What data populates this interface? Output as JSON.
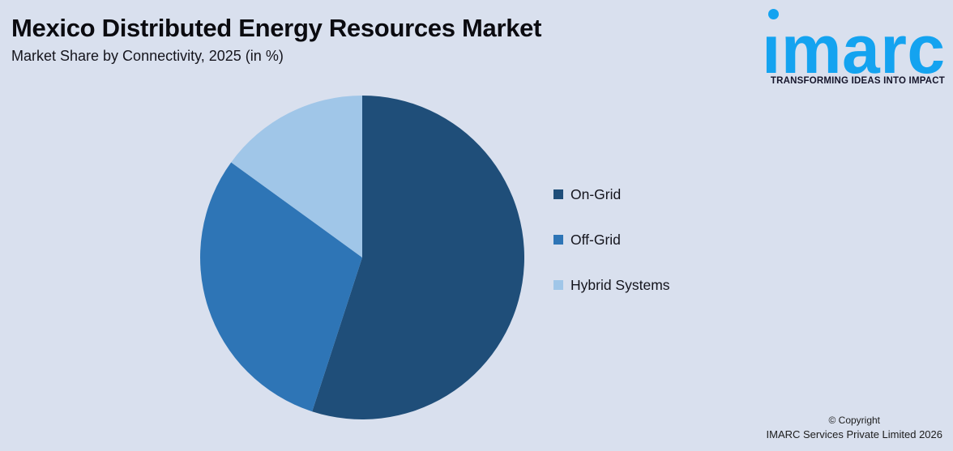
{
  "header": {
    "title": "Mexico Distributed Energy Resources Market",
    "subtitle": "Market Share by Connectivity, 2025 (in %)"
  },
  "logo": {
    "brand": "imarc",
    "wordmark": "ımarc",
    "tagline": "TRANSFORMING IDEAS INTO IMPACT",
    "brand_color": "#14A3F0"
  },
  "chart_data": {
    "type": "pie",
    "title": "Mexico Distributed Energy Resources Market",
    "subtitle": "Market Share by Connectivity, 2025 (in %)",
    "unit": "%",
    "start_angle_deg": 0,
    "direction": "clockwise",
    "legend_position": "right",
    "categories": [
      "On-Grid",
      "Off-Grid",
      "Hybrid Systems"
    ],
    "values": [
      55,
      30,
      15
    ],
    "slices": [
      {
        "label": "On-Grid",
        "value": 55,
        "color": "#1F4E79"
      },
      {
        "label": "Off-Grid",
        "value": 30,
        "color": "#2E75B6"
      },
      {
        "label": "Hybrid Systems",
        "value": 15,
        "color": "#A0C6E8"
      }
    ]
  },
  "footer": {
    "copyright_line1": "© Copyright",
    "copyright_line2": "IMARC Services Private Limited 2026"
  },
  "colors": {
    "background": "#D9E0EE",
    "title_text": "#0b0b10",
    "logo_blue": "#14A3F0"
  }
}
